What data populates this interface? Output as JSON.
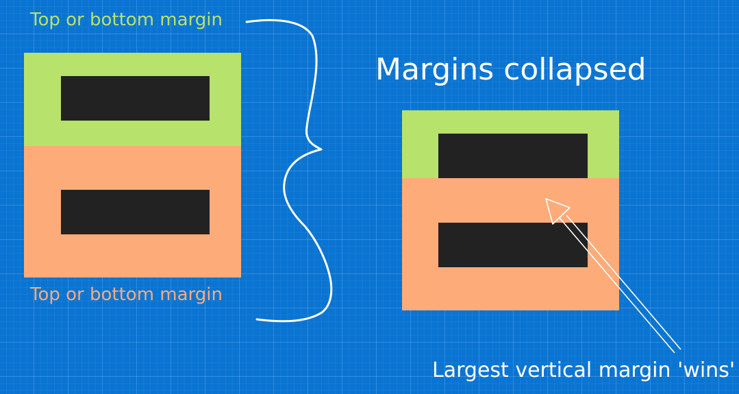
{
  "labels": {
    "top_margin": "Top or bottom margin",
    "bottom_margin": "Top or bottom margin",
    "title": "Margins collapsed",
    "caption": "Largest vertical margin 'wins'"
  },
  "colors": {
    "background": "#0a74d2",
    "green_margin": "#b7e26b",
    "orange_margin": "#fcab79",
    "element": "#222222",
    "text": "#ffffff"
  }
}
